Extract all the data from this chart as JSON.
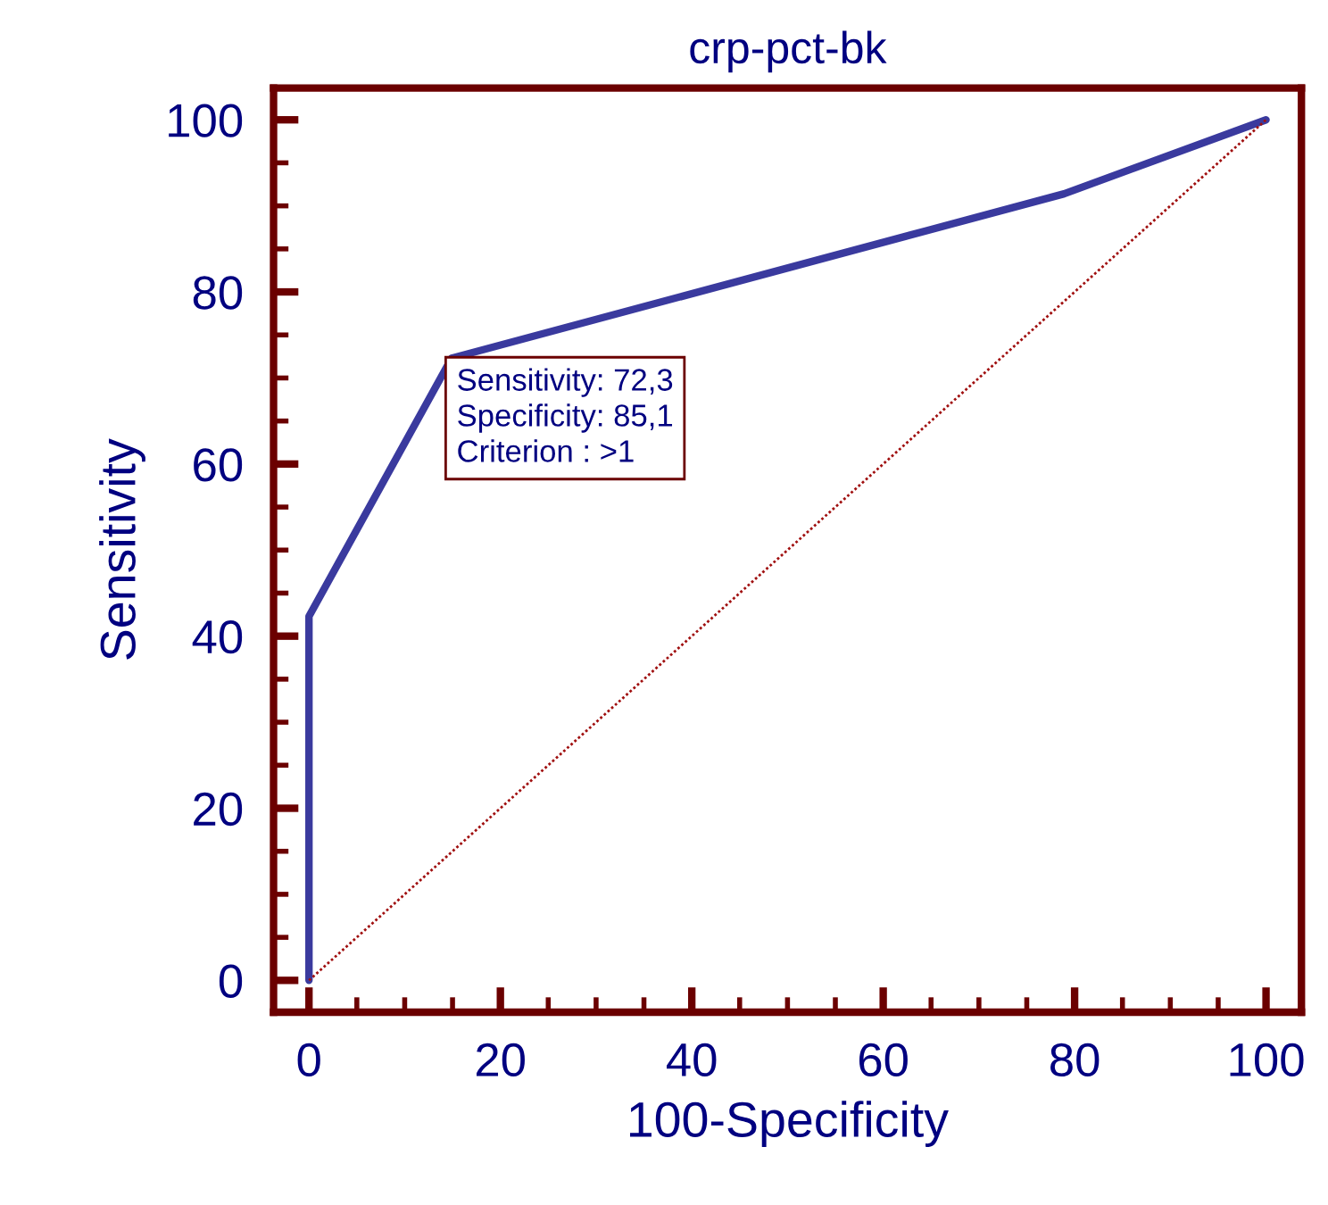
{
  "chart_data": {
    "type": "line",
    "title": "crp-pct-bk",
    "xlabel": "100-Specificity",
    "ylabel": "Sensitivity",
    "series": [
      {
        "color": "#3a3a9e",
        "x": [
          0,
          0,
          14.9,
          78.9,
          100
        ],
        "values": [
          0,
          42.3,
          72.3,
          91.4,
          100
        ],
        "line_style": "solid"
      },
      {
        "color": "#a01010",
        "x": [
          0,
          100
        ],
        "values": [
          0,
          100
        ],
        "line_style": "dotted"
      }
    ],
    "annotations": [
      {
        "text": "Sensitivity: 72,3\nSpecificity: 85,1\nCriterion : >1",
        "x": 14.9,
        "y": 72.3
      }
    ],
    "xlim": [
      -3.7,
      103.7
    ],
    "ylim": [
      -3.7,
      103.7
    ],
    "xticks": [
      0,
      {
        "value": 5,
        "label": null
      },
      {
        "value": 10,
        "label": null
      },
      {
        "value": 15,
        "label": null
      },
      20,
      {
        "value": 25,
        "label": null
      },
      {
        "value": 30,
        "label": null
      },
      {
        "value": 35,
        "label": null
      },
      40,
      {
        "value": 45,
        "label": null
      },
      {
        "value": 50,
        "label": null
      },
      {
        "value": 55,
        "label": null
      },
      60,
      {
        "value": 65,
        "label": null
      },
      {
        "value": 70,
        "label": null
      },
      {
        "value": 75,
        "label": null
      },
      80,
      {
        "value": 85,
        "label": null
      },
      {
        "value": 90,
        "label": null
      },
      {
        "value": 95,
        "label": null
      },
      100
    ],
    "yticks": [
      0,
      {
        "value": 5,
        "label": null
      },
      {
        "value": 10,
        "label": null
      },
      {
        "value": 15,
        "label": null
      },
      20,
      {
        "value": 25,
        "label": null
      },
      {
        "value": 30,
        "label": null
      },
      {
        "value": 35,
        "label": null
      },
      40,
      {
        "value": 45,
        "label": null
      },
      {
        "value": 50,
        "label": null
      },
      {
        "value": 55,
        "label": null
      },
      60,
      {
        "value": 65,
        "label": null
      },
      {
        "value": 70,
        "label": null
      },
      {
        "value": 75,
        "label": null
      },
      80,
      {
        "value": 85,
        "label": null
      },
      {
        "value": 90,
        "label": null
      },
      {
        "value": 95,
        "label": null
      },
      100
    ],
    "grid": false,
    "legend": false,
    "marker": "none"
  }
}
